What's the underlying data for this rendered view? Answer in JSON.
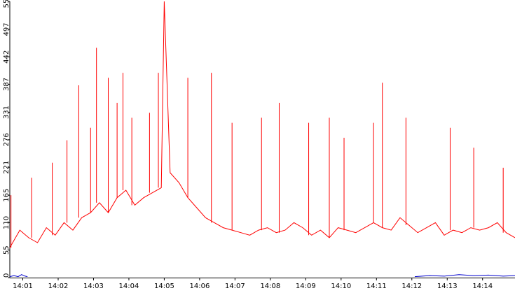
{
  "chart_data": {
    "type": "line",
    "title": "",
    "xlabel": "",
    "ylabel": "",
    "ylim": [
      0,
      553
    ],
    "y_ticks": [
      0,
      55,
      110,
      165,
      221,
      276,
      331,
      387,
      442,
      497,
      553
    ],
    "x_ticks": [
      "14:01",
      "14:02",
      "14:03",
      "14:04",
      "14:05",
      "14:06",
      "14:07",
      "14:08",
      "14:09",
      "14:10",
      "14:11",
      "14:12",
      "14:13",
      "14:14"
    ],
    "x_range": [
      "14:00:38",
      "14:14:55"
    ],
    "grid": false,
    "legend": "none",
    "series": [
      {
        "color": "#ff0000",
        "x": [
          "14:00:38",
          "14:00:55",
          "14:01:10",
          "14:01:25",
          "14:01:40",
          "14:01:55",
          "14:02:10",
          "14:02:25",
          "14:02:40",
          "14:02:55",
          "14:03:10",
          "14:03:25",
          "14:03:40",
          "14:03:55",
          "14:04:10",
          "14:04:25",
          "14:04:40",
          "14:04:55",
          "14:05:00",
          "14:05:10",
          "14:05:25",
          "14:05:40",
          "14:05:55",
          "14:06:10",
          "14:06:25",
          "14:06:40",
          "14:06:55",
          "14:07:10",
          "14:07:25",
          "14:07:40",
          "14:07:55",
          "14:08:10",
          "14:08:25",
          "14:08:40",
          "14:08:55",
          "14:09:10",
          "14:09:25",
          "14:09:40",
          "14:09:55",
          "14:10:10",
          "14:10:25",
          "14:10:40",
          "14:10:55",
          "14:11:10",
          "14:11:25",
          "14:11:40",
          "14:11:55",
          "14:12:10",
          "14:12:25",
          "14:12:40",
          "14:12:55",
          "14:13:10",
          "14:13:25",
          "14:13:40",
          "14:13:55",
          "14:14:10",
          "14:14:25",
          "14:14:40",
          "14:14:55"
        ],
        "values": [
          60,
          95,
          80,
          70,
          100,
          85,
          110,
          95,
          120,
          130,
          150,
          130,
          160,
          175,
          145,
          160,
          170,
          180,
          553,
          210,
          190,
          160,
          140,
          120,
          110,
          100,
          95,
          90,
          85,
          95,
          100,
          90,
          95,
          110,
          100,
          85,
          95,
          80,
          100,
          95,
          90,
          100,
          110,
          100,
          95,
          120,
          105,
          90,
          100,
          110,
          85,
          95,
          90,
          100,
          95,
          100,
          110,
          90,
          80
        ]
      },
      {
        "color": "#0000cc",
        "x": [
          "14:00:38",
          "14:00:45",
          "14:00:52",
          "14:00:58",
          "14:01:04",
          "14:01:08"
        ],
        "values": [
          2,
          4,
          2,
          6,
          3,
          2
        ]
      },
      {
        "color": "#0000cc",
        "x": [
          "14:12:05",
          "14:12:30",
          "14:12:55",
          "14:13:20",
          "14:13:45",
          "14:14:10",
          "14:14:35",
          "14:14:55"
        ],
        "values": [
          2,
          4,
          3,
          6,
          4,
          5,
          3,
          4
        ]
      }
    ],
    "spikes": [
      {
        "x": "14:00:40",
        "y": 165
      },
      {
        "x": "14:01:15",
        "y": 200
      },
      {
        "x": "14:01:50",
        "y": 230
      },
      {
        "x": "14:02:15",
        "y": 275
      },
      {
        "x": "14:02:35",
        "y": 385
      },
      {
        "x": "14:02:55",
        "y": 300
      },
      {
        "x": "14:03:05",
        "y": 460
      },
      {
        "x": "14:03:25",
        "y": 400
      },
      {
        "x": "14:03:40",
        "y": 350
      },
      {
        "x": "14:03:50",
        "y": 410
      },
      {
        "x": "14:04:05",
        "y": 320
      },
      {
        "x": "14:04:35",
        "y": 330
      },
      {
        "x": "14:04:50",
        "y": 410
      },
      {
        "x": "14:05:00",
        "y": 553
      },
      {
        "x": "14:05:40",
        "y": 400
      },
      {
        "x": "14:06:20",
        "y": 410
      },
      {
        "x": "14:06:55",
        "y": 310
      },
      {
        "x": "14:07:45",
        "y": 320
      },
      {
        "x": "14:08:15",
        "y": 350
      },
      {
        "x": "14:09:05",
        "y": 310
      },
      {
        "x": "14:09:40",
        "y": 320
      },
      {
        "x": "14:10:05",
        "y": 280
      },
      {
        "x": "14:10:55",
        "y": 310
      },
      {
        "x": "14:11:10",
        "y": 390
      },
      {
        "x": "14:11:50",
        "y": 320
      },
      {
        "x": "14:13:05",
        "y": 300
      },
      {
        "x": "14:13:45",
        "y": 260
      },
      {
        "x": "14:14:35",
        "y": 220
      }
    ]
  }
}
